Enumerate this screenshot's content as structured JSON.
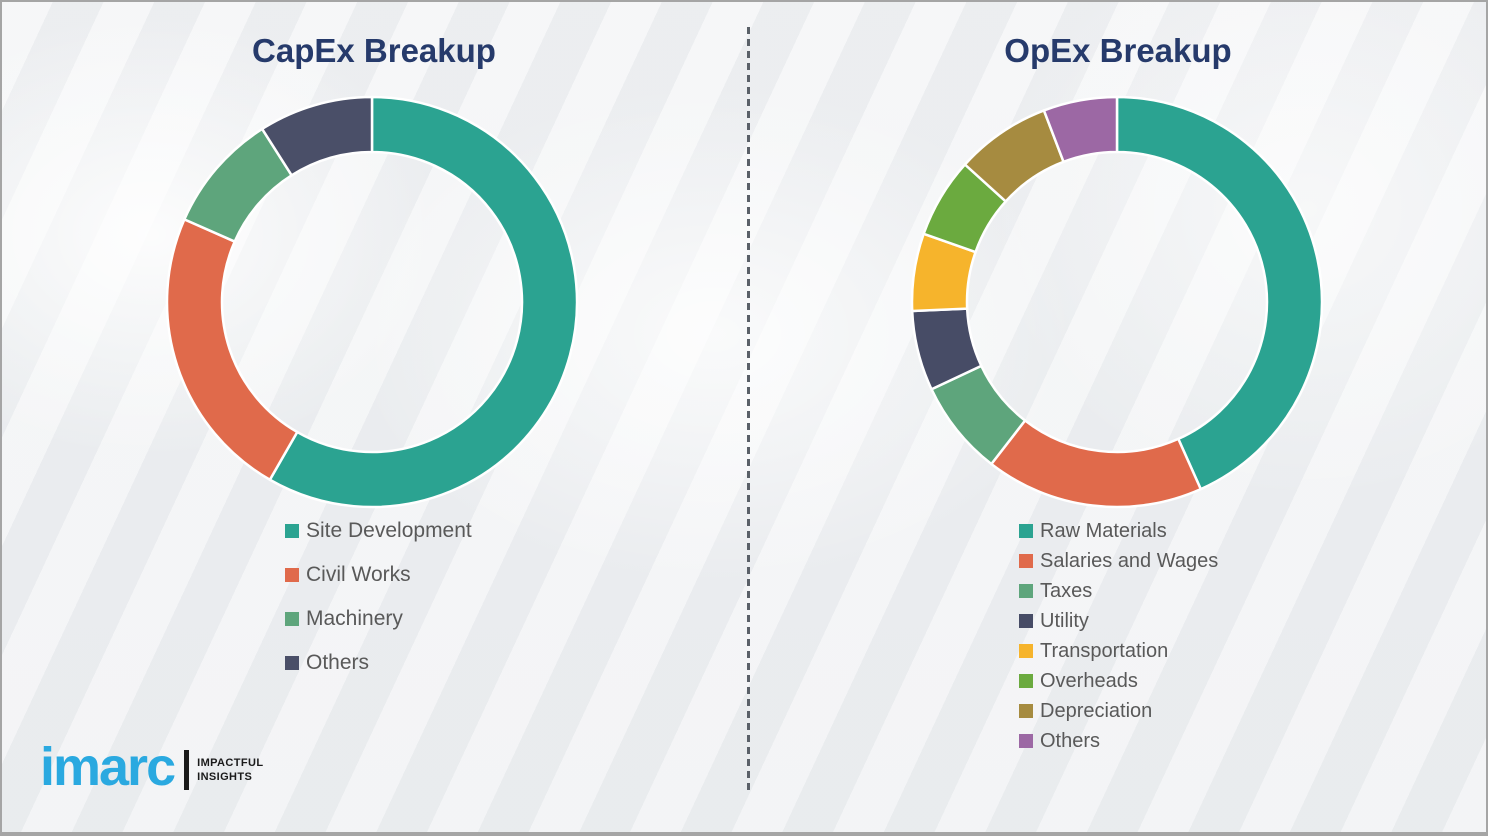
{
  "page": {
    "background_color": "#f1f2f4",
    "border_color": "#a5a5a5",
    "divider_style": "vertical-dashed",
    "divider_color": "#5a6068",
    "title_color": "#263a6b",
    "legend_text_color": "#595959"
  },
  "chart_data": [
    {
      "type": "pie",
      "variant": "donut",
      "title": "CapEx Breakup",
      "start_angle_deg": 0,
      "direction": "clockwise",
      "legend_position": "below",
      "unit": "% (estimated from arc angles, no numeric labels shown)",
      "segments": [
        {
          "label": "Site Development",
          "value": 58.3,
          "color": "#2ba391"
        },
        {
          "label": "Civil Works",
          "value": 23.3,
          "color": "#e06a4b"
        },
        {
          "label": "Machinery",
          "value": 9.4,
          "color": "#5ea57c"
        },
        {
          "label": "Others",
          "value": 9.0,
          "color": "#4a4f68"
        }
      ]
    },
    {
      "type": "pie",
      "variant": "donut",
      "title": "OpEx Breakup",
      "start_angle_deg": 0,
      "direction": "clockwise",
      "legend_position": "below",
      "unit": "% (estimated from arc angles, no numeric labels shown)",
      "segments": [
        {
          "label": "Raw Materials",
          "value": 43.3,
          "color": "#2ba391"
        },
        {
          "label": "Salaries and Wages",
          "value": 17.2,
          "color": "#e06a4b"
        },
        {
          "label": "Taxes",
          "value": 7.5,
          "color": "#5ea57c"
        },
        {
          "label": "Utility",
          "value": 6.3,
          "color": "#474c66"
        },
        {
          "label": "Transportation",
          "value": 6.1,
          "color": "#f6b42c"
        },
        {
          "label": "Overheads",
          "value": 6.3,
          "color": "#6baa3f"
        },
        {
          "label": "Depreciation",
          "value": 7.5,
          "color": "#a68b40"
        },
        {
          "label": "Others",
          "value": 5.8,
          "color": "#9c68a4"
        }
      ]
    }
  ],
  "logo": {
    "brand": "imarc",
    "brand_color": "#2aa9e0",
    "tagline_line1": "IMPACTFUL",
    "tagline_line2": "INSIGHTS"
  }
}
